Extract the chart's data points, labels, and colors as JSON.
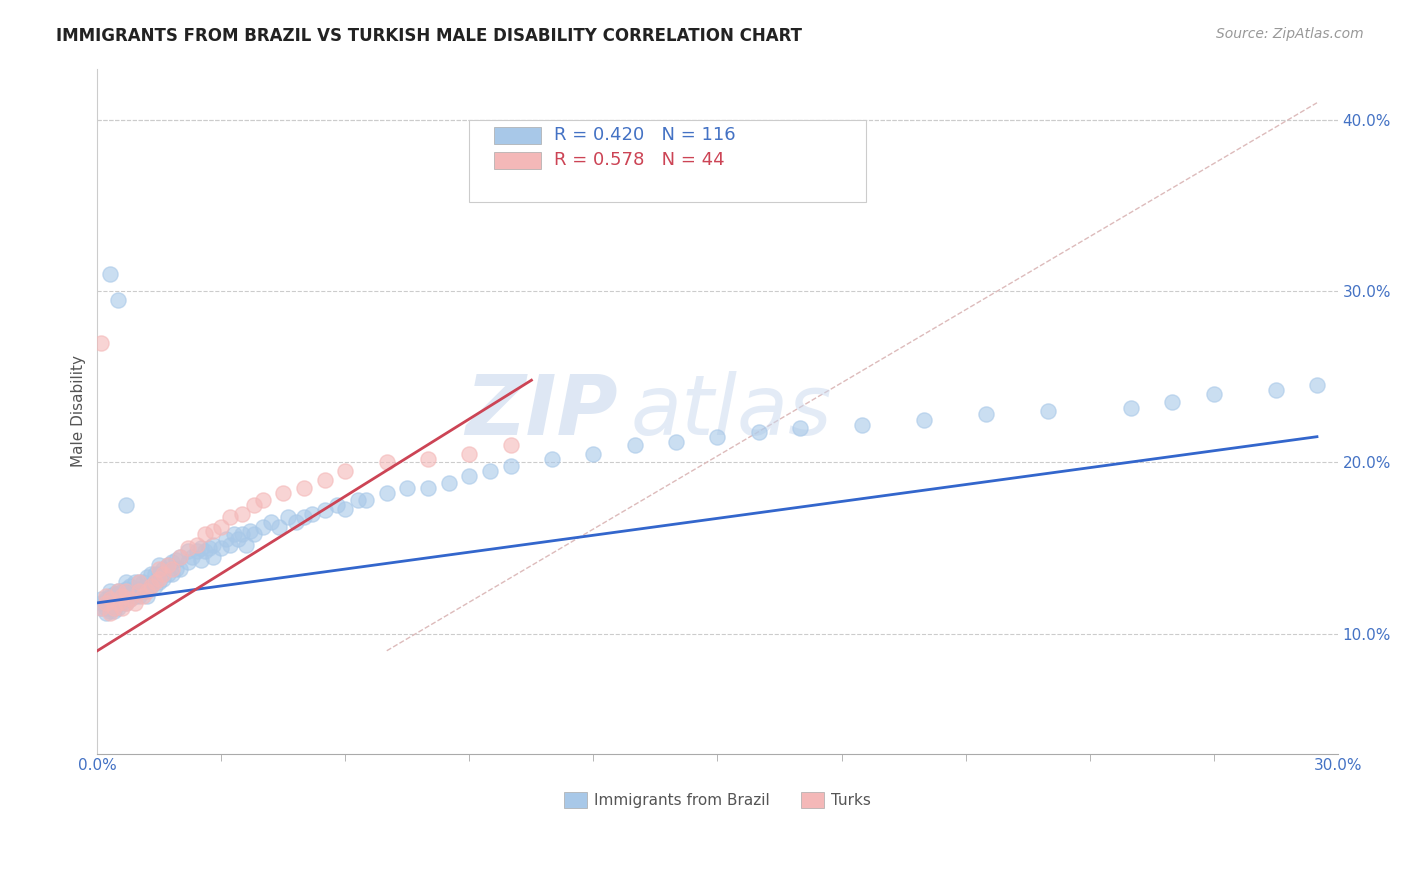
{
  "title": "IMMIGRANTS FROM BRAZIL VS TURKISH MALE DISABILITY CORRELATION CHART",
  "source": "Source: ZipAtlas.com",
  "ylabel": "Male Disability",
  "ytick_labels": [
    "10.0%",
    "20.0%",
    "30.0%",
    "40.0%"
  ],
  "ytick_values": [
    0.1,
    0.2,
    0.3,
    0.4
  ],
  "xlim": [
    0.0,
    0.3
  ],
  "ylim": [
    0.03,
    0.43
  ],
  "legend_blue_r": "R = 0.420",
  "legend_blue_n": "N = 116",
  "legend_pink_r": "R = 0.578",
  "legend_pink_n": "N = 44",
  "legend_label_blue": "Immigrants from Brazil",
  "legend_label_pink": "Turks",
  "blue_color": "#a8c8e8",
  "pink_color": "#f4b8b8",
  "blue_line_color": "#3366cc",
  "pink_line_color": "#cc4455",
  "diagonal_color": "#ddbbbb",
  "watermark_zip": "ZIP",
  "watermark_atlas": "atlas",
  "blue_scatter_x": [
    0.001,
    0.001,
    0.001,
    0.002,
    0.002,
    0.002,
    0.002,
    0.003,
    0.003,
    0.003,
    0.003,
    0.003,
    0.004,
    0.004,
    0.004,
    0.004,
    0.004,
    0.005,
    0.005,
    0.005,
    0.005,
    0.005,
    0.006,
    0.006,
    0.006,
    0.007,
    0.007,
    0.007,
    0.007,
    0.008,
    0.008,
    0.008,
    0.009,
    0.009,
    0.009,
    0.01,
    0.01,
    0.01,
    0.011,
    0.011,
    0.012,
    0.012,
    0.012,
    0.013,
    0.013,
    0.014,
    0.014,
    0.015,
    0.015,
    0.015,
    0.016,
    0.016,
    0.017,
    0.017,
    0.018,
    0.018,
    0.019,
    0.019,
    0.02,
    0.02,
    0.022,
    0.022,
    0.023,
    0.024,
    0.025,
    0.025,
    0.026,
    0.027,
    0.028,
    0.028,
    0.03,
    0.031,
    0.032,
    0.033,
    0.034,
    0.035,
    0.036,
    0.037,
    0.038,
    0.04,
    0.042,
    0.044,
    0.046,
    0.048,
    0.05,
    0.052,
    0.055,
    0.058,
    0.06,
    0.063,
    0.065,
    0.07,
    0.075,
    0.08,
    0.085,
    0.09,
    0.095,
    0.1,
    0.11,
    0.12,
    0.13,
    0.14,
    0.15,
    0.16,
    0.17,
    0.185,
    0.2,
    0.215,
    0.23,
    0.25,
    0.26,
    0.27,
    0.285,
    0.295,
    0.003,
    0.005,
    0.007
  ],
  "blue_scatter_y": [
    0.118,
    0.12,
    0.115,
    0.115,
    0.118,
    0.112,
    0.12,
    0.115,
    0.113,
    0.118,
    0.122,
    0.125,
    0.113,
    0.118,
    0.12,
    0.115,
    0.123,
    0.115,
    0.118,
    0.12,
    0.123,
    0.125,
    0.118,
    0.122,
    0.125,
    0.118,
    0.122,
    0.126,
    0.13,
    0.12,
    0.125,
    0.128,
    0.122,
    0.125,
    0.13,
    0.122,
    0.126,
    0.13,
    0.125,
    0.13,
    0.122,
    0.128,
    0.133,
    0.128,
    0.135,
    0.128,
    0.135,
    0.13,
    0.135,
    0.14,
    0.132,
    0.138,
    0.135,
    0.14,
    0.135,
    0.142,
    0.138,
    0.143,
    0.138,
    0.145,
    0.142,
    0.148,
    0.145,
    0.148,
    0.143,
    0.15,
    0.148,
    0.15,
    0.145,
    0.152,
    0.15,
    0.155,
    0.152,
    0.158,
    0.155,
    0.158,
    0.152,
    0.16,
    0.158,
    0.162,
    0.165,
    0.162,
    0.168,
    0.165,
    0.168,
    0.17,
    0.172,
    0.175,
    0.173,
    0.178,
    0.178,
    0.182,
    0.185,
    0.185,
    0.188,
    0.192,
    0.195,
    0.198,
    0.202,
    0.205,
    0.21,
    0.212,
    0.215,
    0.218,
    0.22,
    0.222,
    0.225,
    0.228,
    0.23,
    0.232,
    0.235,
    0.24,
    0.242,
    0.245,
    0.31,
    0.295,
    0.175
  ],
  "pink_scatter_x": [
    0.001,
    0.002,
    0.002,
    0.003,
    0.003,
    0.004,
    0.005,
    0.005,
    0.006,
    0.006,
    0.007,
    0.007,
    0.008,
    0.009,
    0.01,
    0.01,
    0.011,
    0.012,
    0.013,
    0.014,
    0.015,
    0.015,
    0.016,
    0.017,
    0.018,
    0.02,
    0.022,
    0.024,
    0.026,
    0.028,
    0.03,
    0.032,
    0.035,
    0.038,
    0.04,
    0.045,
    0.05,
    0.055,
    0.06,
    0.07,
    0.08,
    0.09,
    0.1,
    0.001
  ],
  "pink_scatter_y": [
    0.115,
    0.118,
    0.122,
    0.112,
    0.12,
    0.115,
    0.118,
    0.125,
    0.115,
    0.122,
    0.118,
    0.125,
    0.12,
    0.118,
    0.125,
    0.13,
    0.122,
    0.125,
    0.128,
    0.13,
    0.132,
    0.138,
    0.135,
    0.14,
    0.138,
    0.145,
    0.15,
    0.152,
    0.158,
    0.16,
    0.162,
    0.168,
    0.17,
    0.175,
    0.178,
    0.182,
    0.185,
    0.19,
    0.195,
    0.2,
    0.202,
    0.205,
    0.21,
    0.27
  ],
  "blue_line_x": [
    0.0,
    0.295
  ],
  "blue_line_y": [
    0.118,
    0.215
  ],
  "pink_line_x": [
    0.0,
    0.105
  ],
  "pink_line_y": [
    0.09,
    0.248
  ],
  "diag_line_x": [
    0.07,
    0.295
  ],
  "diag_line_y": [
    0.09,
    0.41
  ]
}
